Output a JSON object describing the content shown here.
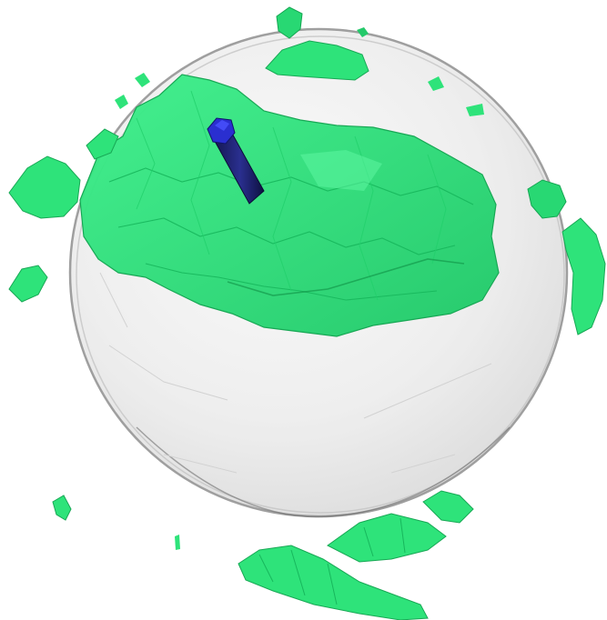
{
  "scene": {
    "background_color": "#ffffff",
    "sphere_color": "#e9e9e9",
    "sphere_edge_color": "#8e8e8e",
    "isosurface_color": "#2ee37a",
    "isosurface_dark_color": "#16b95a",
    "marker_color": "#1a1d6b",
    "marker_tip_color": "#2a2fd0"
  }
}
